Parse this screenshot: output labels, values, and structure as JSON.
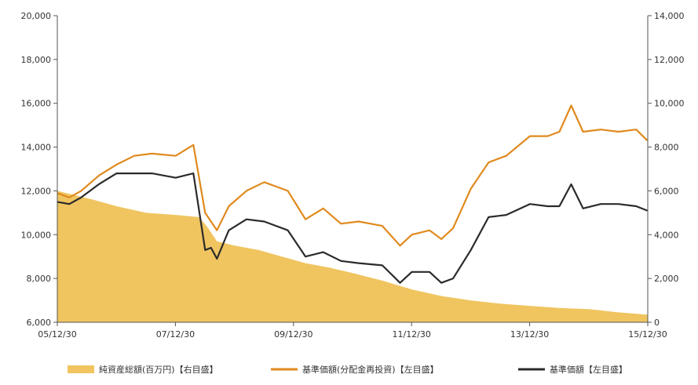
{
  "chart_data": {
    "type": "line",
    "left_axis": {
      "range": [
        6000,
        20000
      ],
      "ticks": [
        "20,000",
        "18,000",
        "16,000",
        "14,000",
        "12,000",
        "10,000",
        "8,000",
        "6,000"
      ]
    },
    "right_axis": {
      "range": [
        0,
        14000
      ],
      "ticks": [
        "14,000",
        "12,000",
        "10,000",
        "8,000",
        "6,000",
        "4,000",
        "2,000",
        "0"
      ]
    },
    "x_ticks": [
      "05/12/30",
      "07/12/30",
      "09/12/30",
      "11/12/30",
      "13/12/30",
      "15/12/30"
    ],
    "x_range": [
      "2005-12-30",
      "2015-12-30"
    ],
    "grid": false,
    "legend_position": "bottom",
    "series": [
      {
        "name": "純資産総額(百万円)【右目盛】",
        "type": "area",
        "axis": "right",
        "color": "#f0c560",
        "x": [
          2005.99,
          2006.3,
          2006.6,
          2007.0,
          2007.5,
          2008.0,
          2008.4,
          2008.55,
          2008.7,
          2009.0,
          2009.4,
          2009.8,
          2010.2,
          2010.6,
          2011.0,
          2011.5,
          2012.0,
          2012.5,
          2013.0,
          2013.5,
          2014.0,
          2014.5,
          2015.0,
          2015.5,
          2015.99
        ],
        "values": [
          6000,
          5800,
          5600,
          5300,
          5000,
          4900,
          4800,
          4300,
          3700,
          3500,
          3300,
          3000,
          2700,
          2500,
          2250,
          1900,
          1500,
          1200,
          1000,
          850,
          750,
          650,
          600,
          450,
          350
        ]
      },
      {
        "name": "基準価額(分配金再投資)【左目盛】",
        "type": "line",
        "axis": "left",
        "color": "#e08a1e",
        "x": [
          2005.99,
          2006.2,
          2006.4,
          2006.7,
          2007.0,
          2007.3,
          2007.6,
          2008.0,
          2008.3,
          2008.5,
          2008.7,
          2008.9,
          2009.2,
          2009.5,
          2009.9,
          2010.2,
          2010.5,
          2010.8,
          2011.1,
          2011.5,
          2011.8,
          2012.0,
          2012.3,
          2012.5,
          2012.7,
          2013.0,
          2013.3,
          2013.6,
          2014.0,
          2014.3,
          2014.5,
          2014.7,
          2014.9,
          2015.2,
          2015.5,
          2015.8,
          2015.99
        ],
        "values": [
          11900,
          11700,
          12000,
          12700,
          13200,
          13600,
          13700,
          13600,
          14100,
          11000,
          10200,
          11300,
          12000,
          12400,
          12000,
          10700,
          11200,
          10500,
          10600,
          10400,
          9500,
          10000,
          10200,
          9800,
          10300,
          12100,
          13300,
          13600,
          14500,
          14500,
          14700,
          15900,
          14700,
          14800,
          14700,
          14800,
          14300
        ]
      },
      {
        "name": "基準価額【左目盛】",
        "type": "line",
        "axis": "left",
        "color": "#2b2b2b",
        "x": [
          2005.99,
          2006.2,
          2006.4,
          2006.7,
          2007.0,
          2007.3,
          2007.6,
          2008.0,
          2008.3,
          2008.5,
          2008.6,
          2008.7,
          2008.9,
          2009.2,
          2009.5,
          2009.9,
          2010.2,
          2010.5,
          2010.8,
          2011.1,
          2011.5,
          2011.8,
          2012.0,
          2012.3,
          2012.5,
          2012.7,
          2013.0,
          2013.3,
          2013.6,
          2014.0,
          2014.3,
          2014.5,
          2014.7,
          2014.9,
          2015.2,
          2015.5,
          2015.8,
          2015.99
        ],
        "values": [
          11500,
          11400,
          11700,
          12300,
          12800,
          12800,
          12800,
          12600,
          12800,
          9300,
          9400,
          8900,
          10200,
          10700,
          10600,
          10200,
          9000,
          9200,
          8800,
          8700,
          8600,
          7800,
          8300,
          8300,
          7800,
          8000,
          9300,
          10800,
          10900,
          11400,
          11300,
          11300,
          12300,
          11200,
          11400,
          11400,
          11300,
          11100
        ]
      }
    ]
  }
}
